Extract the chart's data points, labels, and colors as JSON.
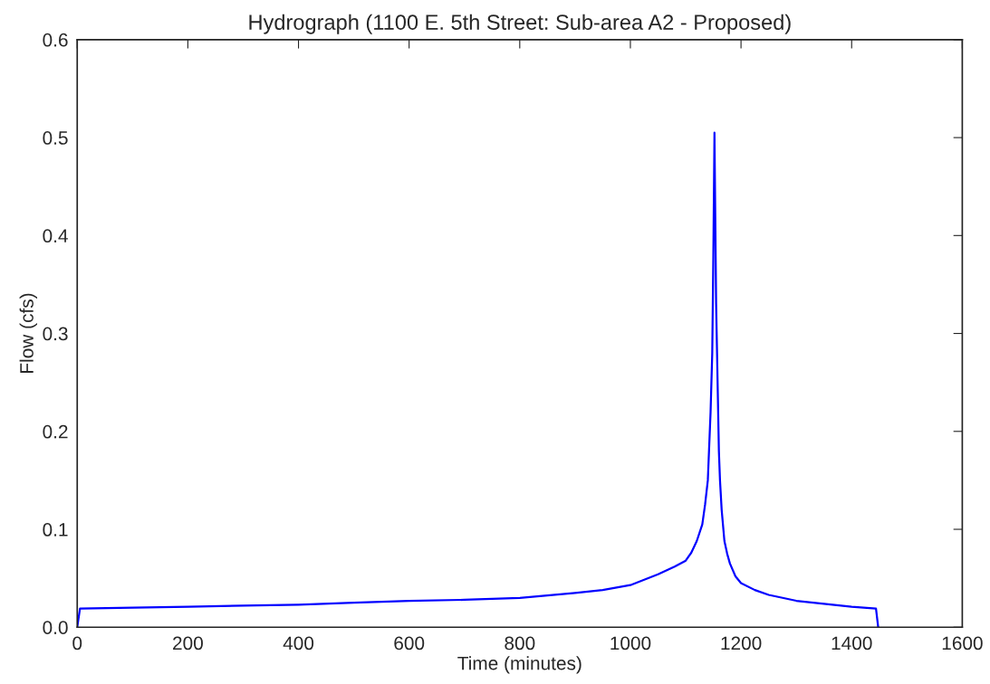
{
  "chart_data": {
    "type": "line",
    "title": "Hydrograph (1100 E. 5th Street: Sub-area A2 - Proposed)",
    "xlabel": "Time (minutes)",
    "ylabel": "Flow (cfs)",
    "series": [
      {
        "color": "#0000ff",
        "x": [
          0,
          5,
          100,
          200,
          300,
          400,
          500,
          600,
          700,
          800,
          900,
          950,
          1000,
          1050,
          1080,
          1100,
          1110,
          1120,
          1130,
          1135,
          1140,
          1145,
          1148,
          1150,
          1152,
          1155,
          1158,
          1160,
          1162,
          1165,
          1170,
          1175,
          1180,
          1190,
          1200,
          1225,
          1250,
          1300,
          1350,
          1400,
          1444,
          1448
        ],
        "values": [
          0,
          0.019,
          0.02,
          0.021,
          0.022,
          0.023,
          0.025,
          0.027,
          0.028,
          0.03,
          0.035,
          0.038,
          0.043,
          0.054,
          0.062,
          0.068,
          0.076,
          0.088,
          0.105,
          0.125,
          0.15,
          0.22,
          0.28,
          0.38,
          0.505,
          0.33,
          0.24,
          0.18,
          0.15,
          0.12,
          0.088,
          0.075,
          0.065,
          0.052,
          0.045,
          0.038,
          0.033,
          0.027,
          0.024,
          0.021,
          0.019,
          0
        ]
      }
    ],
    "xlim": [
      0,
      1600
    ],
    "xticks": [
      0,
      200,
      400,
      600,
      800,
      1000,
      1200,
      1400,
      1600
    ],
    "ylim": [
      0,
      0.6
    ],
    "yticks": [
      {
        "value": 0,
        "label": "0.0"
      },
      0.1,
      0.2,
      0.3,
      0.4,
      0.5,
      0.6
    ],
    "grid": false
  }
}
